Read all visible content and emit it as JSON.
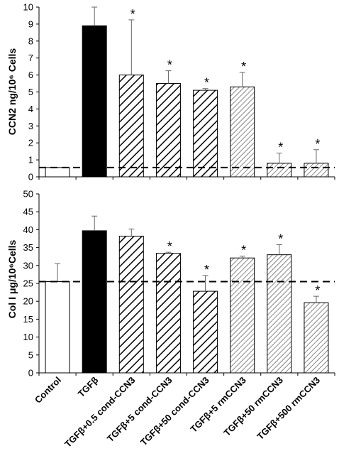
{
  "chart_data": [
    {
      "type": "bar",
      "ylabel": "CCN2 ng/10⁶ Cells",
      "ylim": [
        0,
        10
      ],
      "ticks": [
        0,
        1,
        2,
        3,
        4,
        5,
        6,
        7,
        8,
        9,
        10
      ],
      "baseline": 0.55,
      "categories": [
        "Control",
        "TGFβ",
        "TGFβ+0.5 cond-CCN3",
        "TGFβ+5 cond-CCN3",
        "TGFβ+50 cond-CCN3",
        "TGFβ+5 rmCCN3",
        "TGFβ+50 rmCCN3",
        "TGFβ+500 rmCCN3"
      ],
      "values": [
        0.55,
        8.9,
        6.0,
        5.5,
        5.1,
        5.3,
        0.8,
        0.8
      ],
      "errors": [
        0,
        1.1,
        3.25,
        0.75,
        0.1,
        0.85,
        0.6,
        0.8
      ],
      "significant": [
        false,
        false,
        true,
        true,
        true,
        true,
        true,
        true
      ],
      "significance_mark": "*"
    },
    {
      "type": "bar",
      "ylabel": "Col I μg/10⁶Cells",
      "ylim": [
        0,
        50
      ],
      "ticks": [
        0,
        5,
        10,
        15,
        20,
        25,
        30,
        35,
        40,
        45,
        50
      ],
      "baseline": 25.5,
      "categories": [
        "Control",
        "TGFβ",
        "TGFβ+0.5 cond-CCN3",
        "TGFβ+5 cond-CCN3",
        "TGFβ+50 cond-CCN3",
        "TGFβ+5 rmCCN3",
        "TGFβ+50 rmCCN3",
        "TGFβ+500 rmCCN3"
      ],
      "values": [
        25.5,
        39.7,
        38.2,
        33.4,
        22.8,
        32.1,
        33.0,
        19.6
      ],
      "errors": [
        5.0,
        4.1,
        2.0,
        0.3,
        4.4,
        0.5,
        2.8,
        1.8
      ],
      "significant": [
        false,
        false,
        false,
        true,
        true,
        true,
        true,
        true
      ],
      "significance_mark": "*"
    }
  ],
  "colors": {
    "control_fill": "#ffffff",
    "tgfb_fill": "#000000",
    "cond_hatch": "#000000",
    "rm_hatch": "#555555"
  }
}
